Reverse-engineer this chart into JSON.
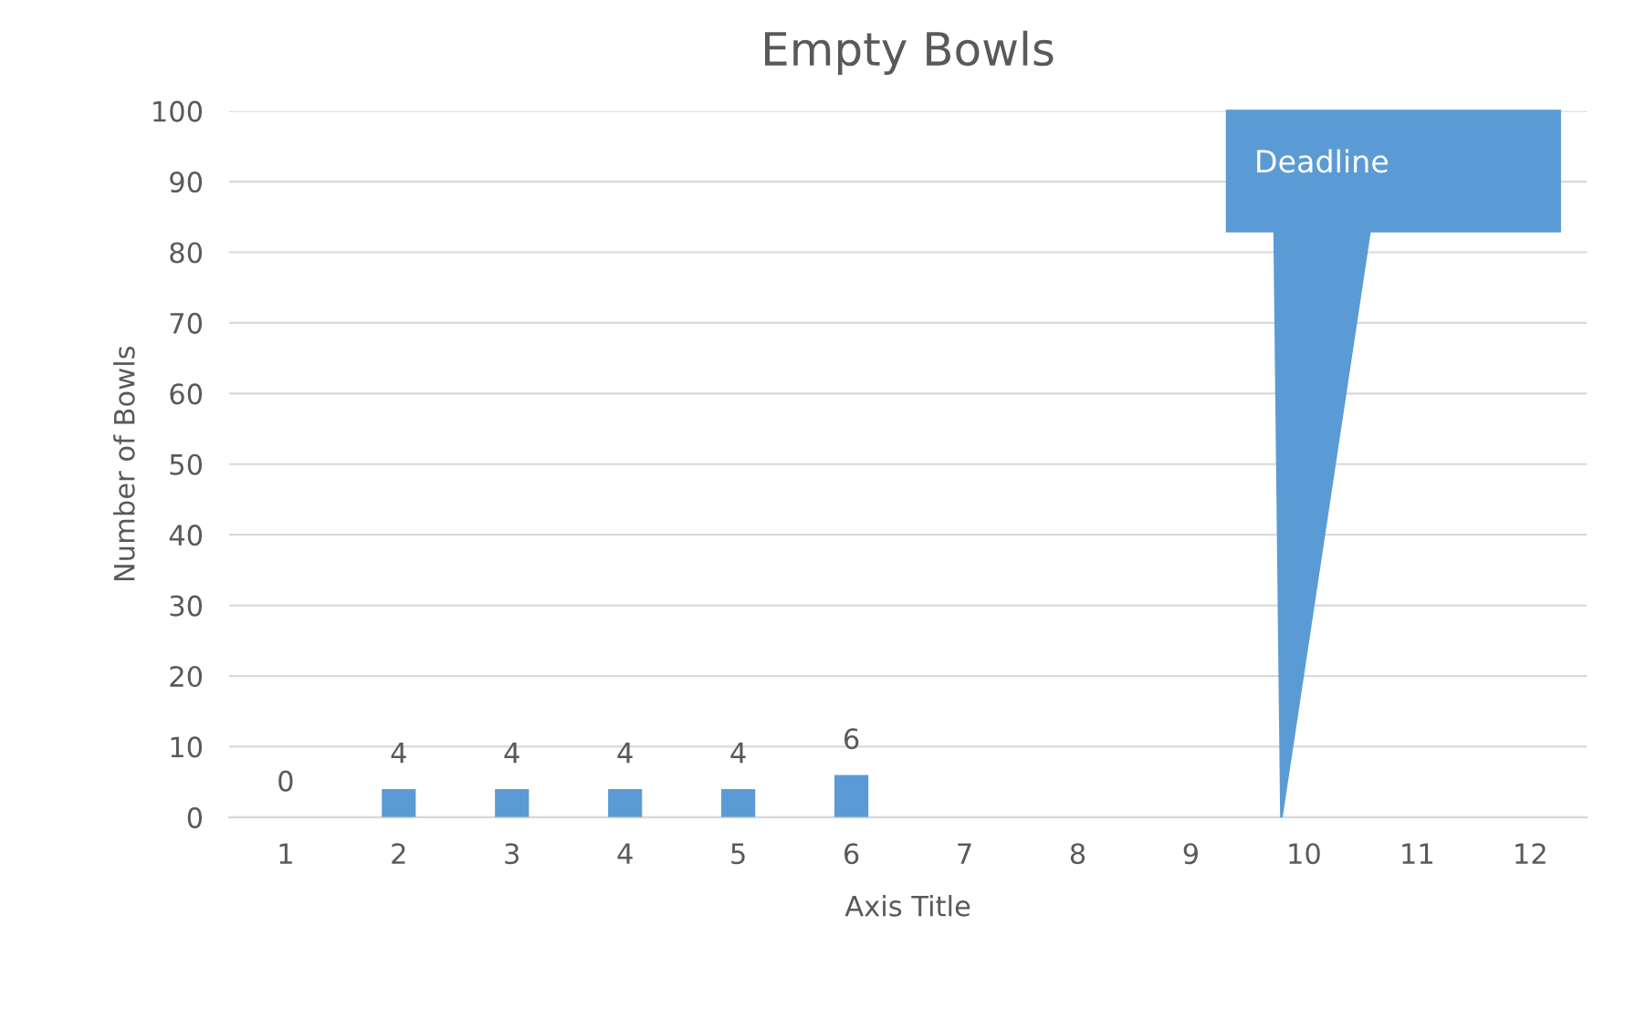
{
  "chart_data": {
    "type": "bar",
    "title": "Empty Bowls",
    "xlabel": "Axis Title",
    "ylabel": "Number of Bowls",
    "categories": [
      "1",
      "2",
      "3",
      "4",
      "5",
      "6",
      "7",
      "8",
      "9",
      "10",
      "11",
      "12"
    ],
    "values": [
      0,
      4,
      4,
      4,
      4,
      6,
      null,
      null,
      null,
      null,
      null,
      null
    ],
    "color": "#5b9bd5",
    "ylim": [
      0,
      100
    ],
    "yticks": [
      0,
      10,
      20,
      30,
      40,
      50,
      60,
      70,
      80,
      90,
      100
    ],
    "grid": "y",
    "data_labels": true,
    "annotations": [
      "Deadline"
    ]
  }
}
